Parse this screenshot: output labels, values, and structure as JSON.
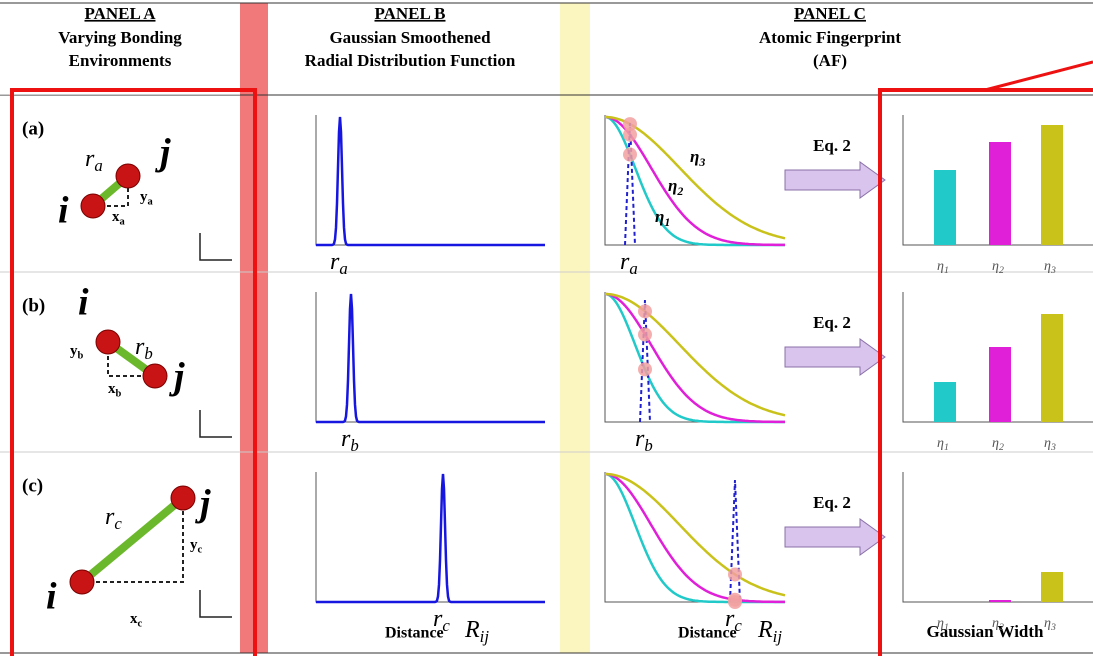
{
  "header": {
    "panel_a": {
      "title": "PANEL A",
      "lines": [
        "Varying Bonding",
        "Environments"
      ]
    },
    "panel_b": {
      "title": "PANEL B",
      "lines": [
        "Gaussian Smoothened",
        "Radial Distribution Function"
      ]
    },
    "panel_c": {
      "title": "PANEL C",
      "lines": [
        "Atomic Fingerprint",
        "(AF)"
      ]
    }
  },
  "rows": [
    {
      "label": "(a)",
      "atom_i": "i",
      "atom_j": "j",
      "bond": {
        "symbol": "r",
        "sub": "a"
      },
      "dy": {
        "symbol": "y",
        "sub": "a"
      },
      "dx": {
        "symbol": "x",
        "sub": "a"
      },
      "rdf_peak": {
        "symbol": "r",
        "sub": "a"
      },
      "af_peak": {
        "symbol": "r",
        "sub": "a"
      },
      "equation": "Eq. 2",
      "eta_labels": [
        {
          "symbol": "η",
          "sub": "1"
        },
        {
          "symbol": "η",
          "sub": "2"
        },
        {
          "symbol": "η",
          "sub": "3"
        }
      ]
    },
    {
      "label": "(b)",
      "atom_i": "i",
      "atom_j": "j",
      "bond": {
        "symbol": "r",
        "sub": "b"
      },
      "dy": {
        "symbol": "y",
        "sub": "b"
      },
      "dx": {
        "symbol": "x",
        "sub": "b"
      },
      "rdf_peak": {
        "symbol": "r",
        "sub": "b"
      },
      "af_peak": {
        "symbol": "r",
        "sub": "b"
      },
      "equation": "Eq. 2",
      "eta_labels": [
        {
          "symbol": "η",
          "sub": "1"
        },
        {
          "symbol": "η",
          "sub": "2"
        },
        {
          "symbol": "η",
          "sub": "3"
        }
      ]
    },
    {
      "label": "(c)",
      "atom_i": "i",
      "atom_j": "j",
      "bond": {
        "symbol": "r",
        "sub": "c"
      },
      "dy": {
        "symbol": "y",
        "sub": "c"
      },
      "dx": {
        "symbol": "x",
        "sub": "c"
      },
      "rdf_peak": {
        "symbol": "r",
        "sub": "c"
      },
      "af_peak": {
        "symbol": "r",
        "sub": "c"
      },
      "equation": "Eq. 2",
      "eta_labels": [
        {
          "symbol": "η",
          "sub": "1"
        },
        {
          "symbol": "η",
          "sub": "2"
        },
        {
          "symbol": "η",
          "sub": "3"
        }
      ]
    }
  ],
  "curve_labels": [
    {
      "symbol": "η",
      "sub": "3"
    },
    {
      "symbol": "η",
      "sub": "2"
    },
    {
      "symbol": "η",
      "sub": "1"
    }
  ],
  "footer": {
    "rdf_axis": {
      "text": "Distance",
      "symbol": "R",
      "sub": "ij"
    },
    "af_axis": {
      "text": "Distance",
      "symbol": "R",
      "sub": "ij"
    },
    "bar_axis": "Gaussian Width"
  }
}
